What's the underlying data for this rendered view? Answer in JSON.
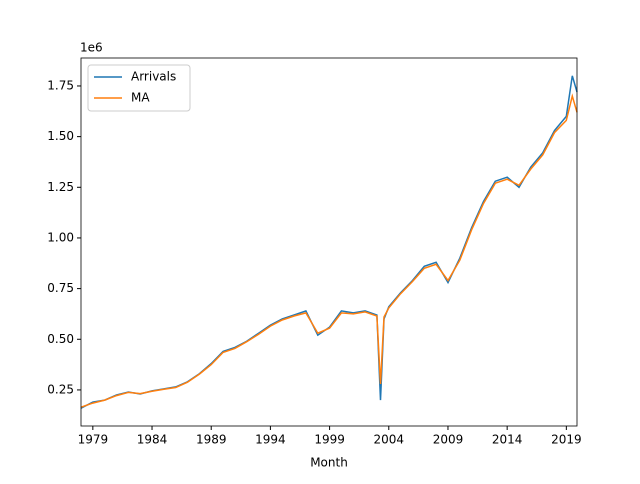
{
  "chart_data": {
    "type": "line",
    "xlabel": "Month",
    "y_offset_label": "1e6",
    "x": [
      1978.0,
      1979,
      1980,
      1981,
      1982,
      1983,
      1984,
      1985,
      1986,
      1987,
      1988,
      1989,
      1990,
      1991,
      1992,
      1993,
      1994,
      1995,
      1996,
      1997,
      1998,
      1999,
      2000,
      2001,
      2002,
      2003,
      2003.3,
      2003.6,
      2004,
      2005,
      2006,
      2007,
      2008,
      2009,
      2010,
      2011,
      2012,
      2013,
      2014,
      2015,
      2016,
      2017,
      2018,
      2019,
      2019.5,
      2019.9
    ],
    "series": [
      {
        "name": "Arrivals",
        "color": "#1f77b4",
        "values": [
          160000,
          190000,
          200000,
          225000,
          240000,
          230000,
          245000,
          255000,
          265000,
          290000,
          330000,
          380000,
          440000,
          460000,
          490000,
          530000,
          570000,
          600000,
          620000,
          640000,
          520000,
          560000,
          640000,
          630000,
          640000,
          620000,
          200000,
          600000,
          660000,
          730000,
          790000,
          860000,
          880000,
          780000,
          900000,
          1050000,
          1180000,
          1280000,
          1300000,
          1250000,
          1350000,
          1420000,
          1530000,
          1600000,
          1800000,
          1720000
        ]
      },
      {
        "name": "MA",
        "color": "#ff7f0e",
        "values": [
          165000,
          185000,
          200000,
          222000,
          238000,
          232000,
          243000,
          253000,
          262000,
          288000,
          328000,
          375000,
          435000,
          455000,
          488000,
          525000,
          565000,
          595000,
          615000,
          630000,
          530000,
          555000,
          630000,
          625000,
          635000,
          615000,
          280000,
          610000,
          655000,
          725000,
          785000,
          850000,
          870000,
          790000,
          890000,
          1040000,
          1170000,
          1270000,
          1290000,
          1260000,
          1340000,
          1410000,
          1520000,
          1580000,
          1700000,
          1620000
        ]
      }
    ],
    "xlim": [
      1978.0,
      2019.9
    ],
    "xticks": [
      1979,
      1984,
      1989,
      1994,
      1999,
      2004,
      2009,
      2014,
      2019
    ],
    "ylim": [
      72000,
      1888000
    ],
    "yticks": [
      {
        "value": 250000,
        "label": "0.25"
      },
      {
        "value": 500000,
        "label": "0.50"
      },
      {
        "value": 750000,
        "label": "0.75"
      },
      {
        "value": 1000000,
        "label": "1.00"
      },
      {
        "value": 1250000,
        "label": "1.25"
      },
      {
        "value": 1500000,
        "label": "1.50"
      },
      {
        "value": 1750000,
        "label": "1.75"
      }
    ],
    "legend": "upper left",
    "grid": false
  }
}
